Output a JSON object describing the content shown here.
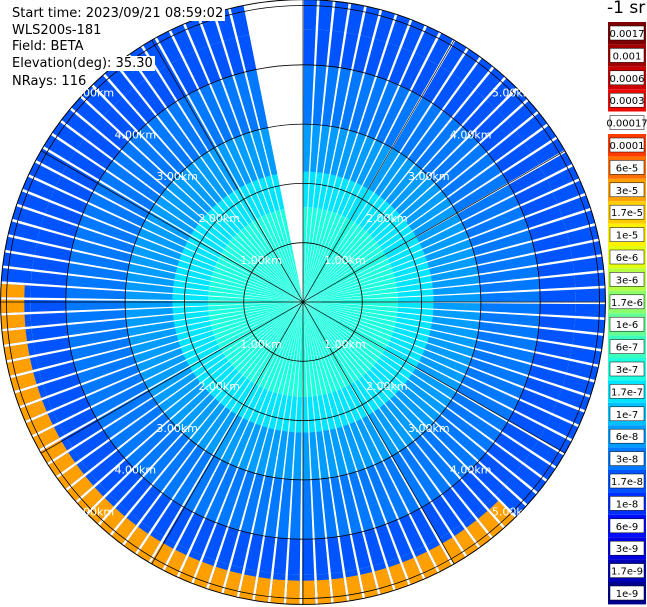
{
  "header": {
    "start_time": "Start time: 2023/09/21 08:59:02",
    "instrument": "WLS200s-181",
    "field": "Field: BETA",
    "elevation": "Elevation(deg): 35.30",
    "nrays": "NRays: 116"
  },
  "colorbar": {
    "unit_label": "-1 sr",
    "ticks": [
      "0.0017",
      "0.001",
      "0.0006",
      "0.0003",
      "0.00017",
      "0.0001",
      "6e-5",
      "3e-5",
      "1.7e-5",
      "1e-5",
      "6e-6",
      "3e-6",
      "1.7e-6",
      "1e-6",
      "6e-7",
      "3e-7",
      "1.7e-7",
      "1e-7",
      "6e-8",
      "3e-8",
      "1.7e-8",
      "1e-8",
      "6e-9",
      "3e-9",
      "1.7e-9",
      "1e-9"
    ],
    "colors": [
      "#7f0000",
      "#a00000",
      "#c80000",
      "#ee0a00",
      "#ffffff",
      "#ff3c00",
      "#ff6e00",
      "#ffa000",
      "#ffcc00",
      "#fff000",
      "#e4ff12",
      "#b4ff42",
      "#8cff6a",
      "#64ff92",
      "#3cffbd",
      "#1effe0",
      "#00e4ff",
      "#00c0ff",
      "#009cff",
      "#0078ff",
      "#0054ff",
      "#0030ff",
      "#000cff",
      "#0000e0",
      "#0000b4",
      "#00008c"
    ]
  },
  "chart_data": {
    "type": "heatmap",
    "projection": "polar (PPI scan)",
    "field": "BETA",
    "range_unit": "km",
    "range_rings_km": [
      1,
      2,
      3,
      4,
      5
    ],
    "range_labels": [
      "1.00km",
      "2.00km",
      "3.00km",
      "4.00km",
      "5.00km"
    ],
    "max_range_km": 5.1,
    "azimuth_spokes_deg": [
      0,
      30,
      60,
      90,
      120,
      150,
      180,
      210,
      240,
      270,
      300,
      330
    ],
    "n_rays": 116,
    "scan_gap_azimuth_deg": [
      -11,
      0
    ],
    "radial_profile": [
      {
        "range_km": 0.0,
        "beta_class": "3e-7"
      },
      {
        "range_km": 1.0,
        "beta_class": "3e-7"
      },
      {
        "range_km": 1.6,
        "beta_class": "1.7e-7"
      },
      {
        "range_km": 2.2,
        "beta_class": "6e-8"
      },
      {
        "range_km": 3.0,
        "beta_class": "3e-8"
      },
      {
        "range_km": 4.0,
        "beta_class": "1.7e-8"
      },
      {
        "range_km": 4.6,
        "beta_class": "1.7e-8"
      },
      {
        "range_km": 5.1,
        "beta_class": "1e-8"
      }
    ],
    "high_return_arc": {
      "azimuth_deg_range": [
        135,
        275
      ],
      "range_km": [
        4.7,
        5.1
      ],
      "beta_class_peak": "3e-5"
    }
  }
}
